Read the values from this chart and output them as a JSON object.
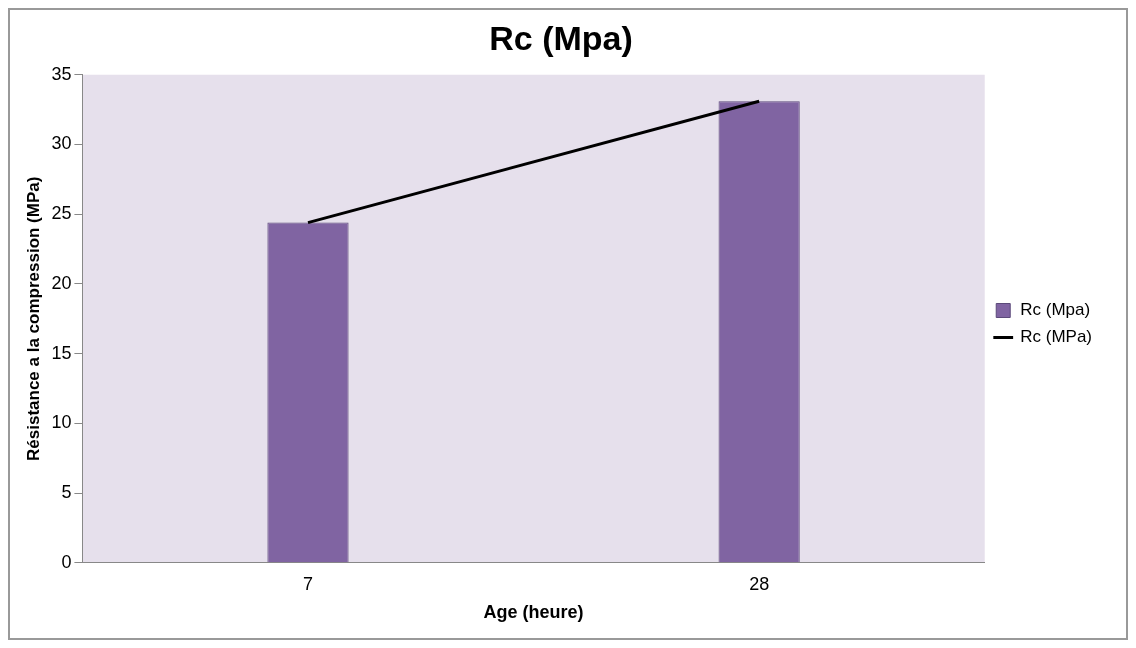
{
  "chart_data": {
    "type": "bar",
    "title": "Rc (Mpa)",
    "xlabel": "Age (heure)",
    "ylabel": "Résistance a la compression (MPa)",
    "categories": [
      "7",
      "28"
    ],
    "series": [
      {
        "name": "Rc (Mpa)",
        "color": "#8064a2",
        "values": [
          24.4,
          33.1
        ]
      },
      {
        "name": "Rc (MPa)",
        "type": "line",
        "color": "#000000",
        "values": [
          24.4,
          33.1
        ]
      }
    ],
    "ylim": [
      0,
      35
    ],
    "yticks": [
      0,
      5,
      10,
      15,
      20,
      25,
      30,
      35
    ],
    "grid": false,
    "legend": "right",
    "marker": "none"
  }
}
